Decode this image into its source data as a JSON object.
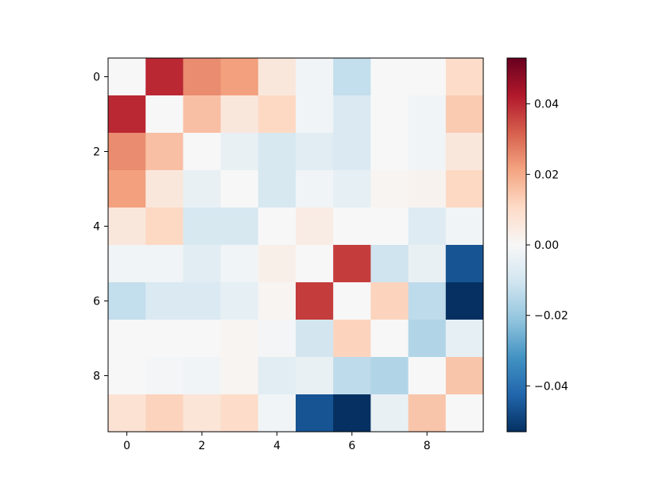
{
  "chart_data": {
    "type": "heatmap",
    "title": "",
    "xlabel": "",
    "ylabel": "",
    "colormap": "RdBu_r",
    "vmin": -0.053,
    "vmax": 0.053,
    "x_ticks": [
      "0",
      "2",
      "4",
      "6",
      "8"
    ],
    "y_ticks": [
      "0",
      "2",
      "4",
      "6",
      "8"
    ],
    "colorbar_ticks": [
      "−0.04",
      "−0.02",
      "0.00",
      "0.02",
      "0.04"
    ],
    "colorbar_tick_values": [
      -0.04,
      -0.02,
      0.0,
      0.02,
      0.04
    ],
    "matrix": [
      [
        0.0,
        0.04,
        0.025,
        0.022,
        0.006,
        -0.002,
        -0.013,
        0.0,
        0.0,
        0.01
      ],
      [
        0.04,
        0.0,
        0.016,
        0.006,
        0.011,
        -0.002,
        -0.008,
        0.0,
        -0.002,
        0.014
      ],
      [
        0.025,
        0.016,
        0.0,
        -0.004,
        -0.009,
        -0.006,
        -0.008,
        0.0,
        -0.002,
        0.006
      ],
      [
        0.022,
        0.006,
        -0.004,
        0.0,
        -0.009,
        -0.002,
        -0.005,
        0.001,
        0.002,
        0.011
      ],
      [
        0.006,
        0.011,
        -0.009,
        -0.009,
        0.0,
        0.004,
        0.0,
        0.0,
        -0.007,
        -0.002
      ],
      [
        -0.002,
        -0.002,
        -0.006,
        -0.002,
        0.003,
        0.0,
        0.037,
        -0.011,
        -0.004,
        -0.046
      ],
      [
        -0.013,
        -0.008,
        -0.008,
        -0.005,
        0.001,
        0.037,
        0.0,
        0.012,
        -0.014,
        -0.053
      ],
      [
        0.0,
        0.0,
        0.0,
        0.001,
        -0.001,
        -0.01,
        0.012,
        0.0,
        -0.016,
        -0.005
      ],
      [
        0.0,
        -0.001,
        -0.002,
        0.001,
        -0.006,
        -0.004,
        -0.014,
        -0.016,
        0.0,
        0.015
      ],
      [
        0.008,
        0.012,
        0.007,
        0.01,
        -0.002,
        -0.046,
        -0.053,
        -0.004,
        0.015,
        0.0
      ]
    ]
  }
}
